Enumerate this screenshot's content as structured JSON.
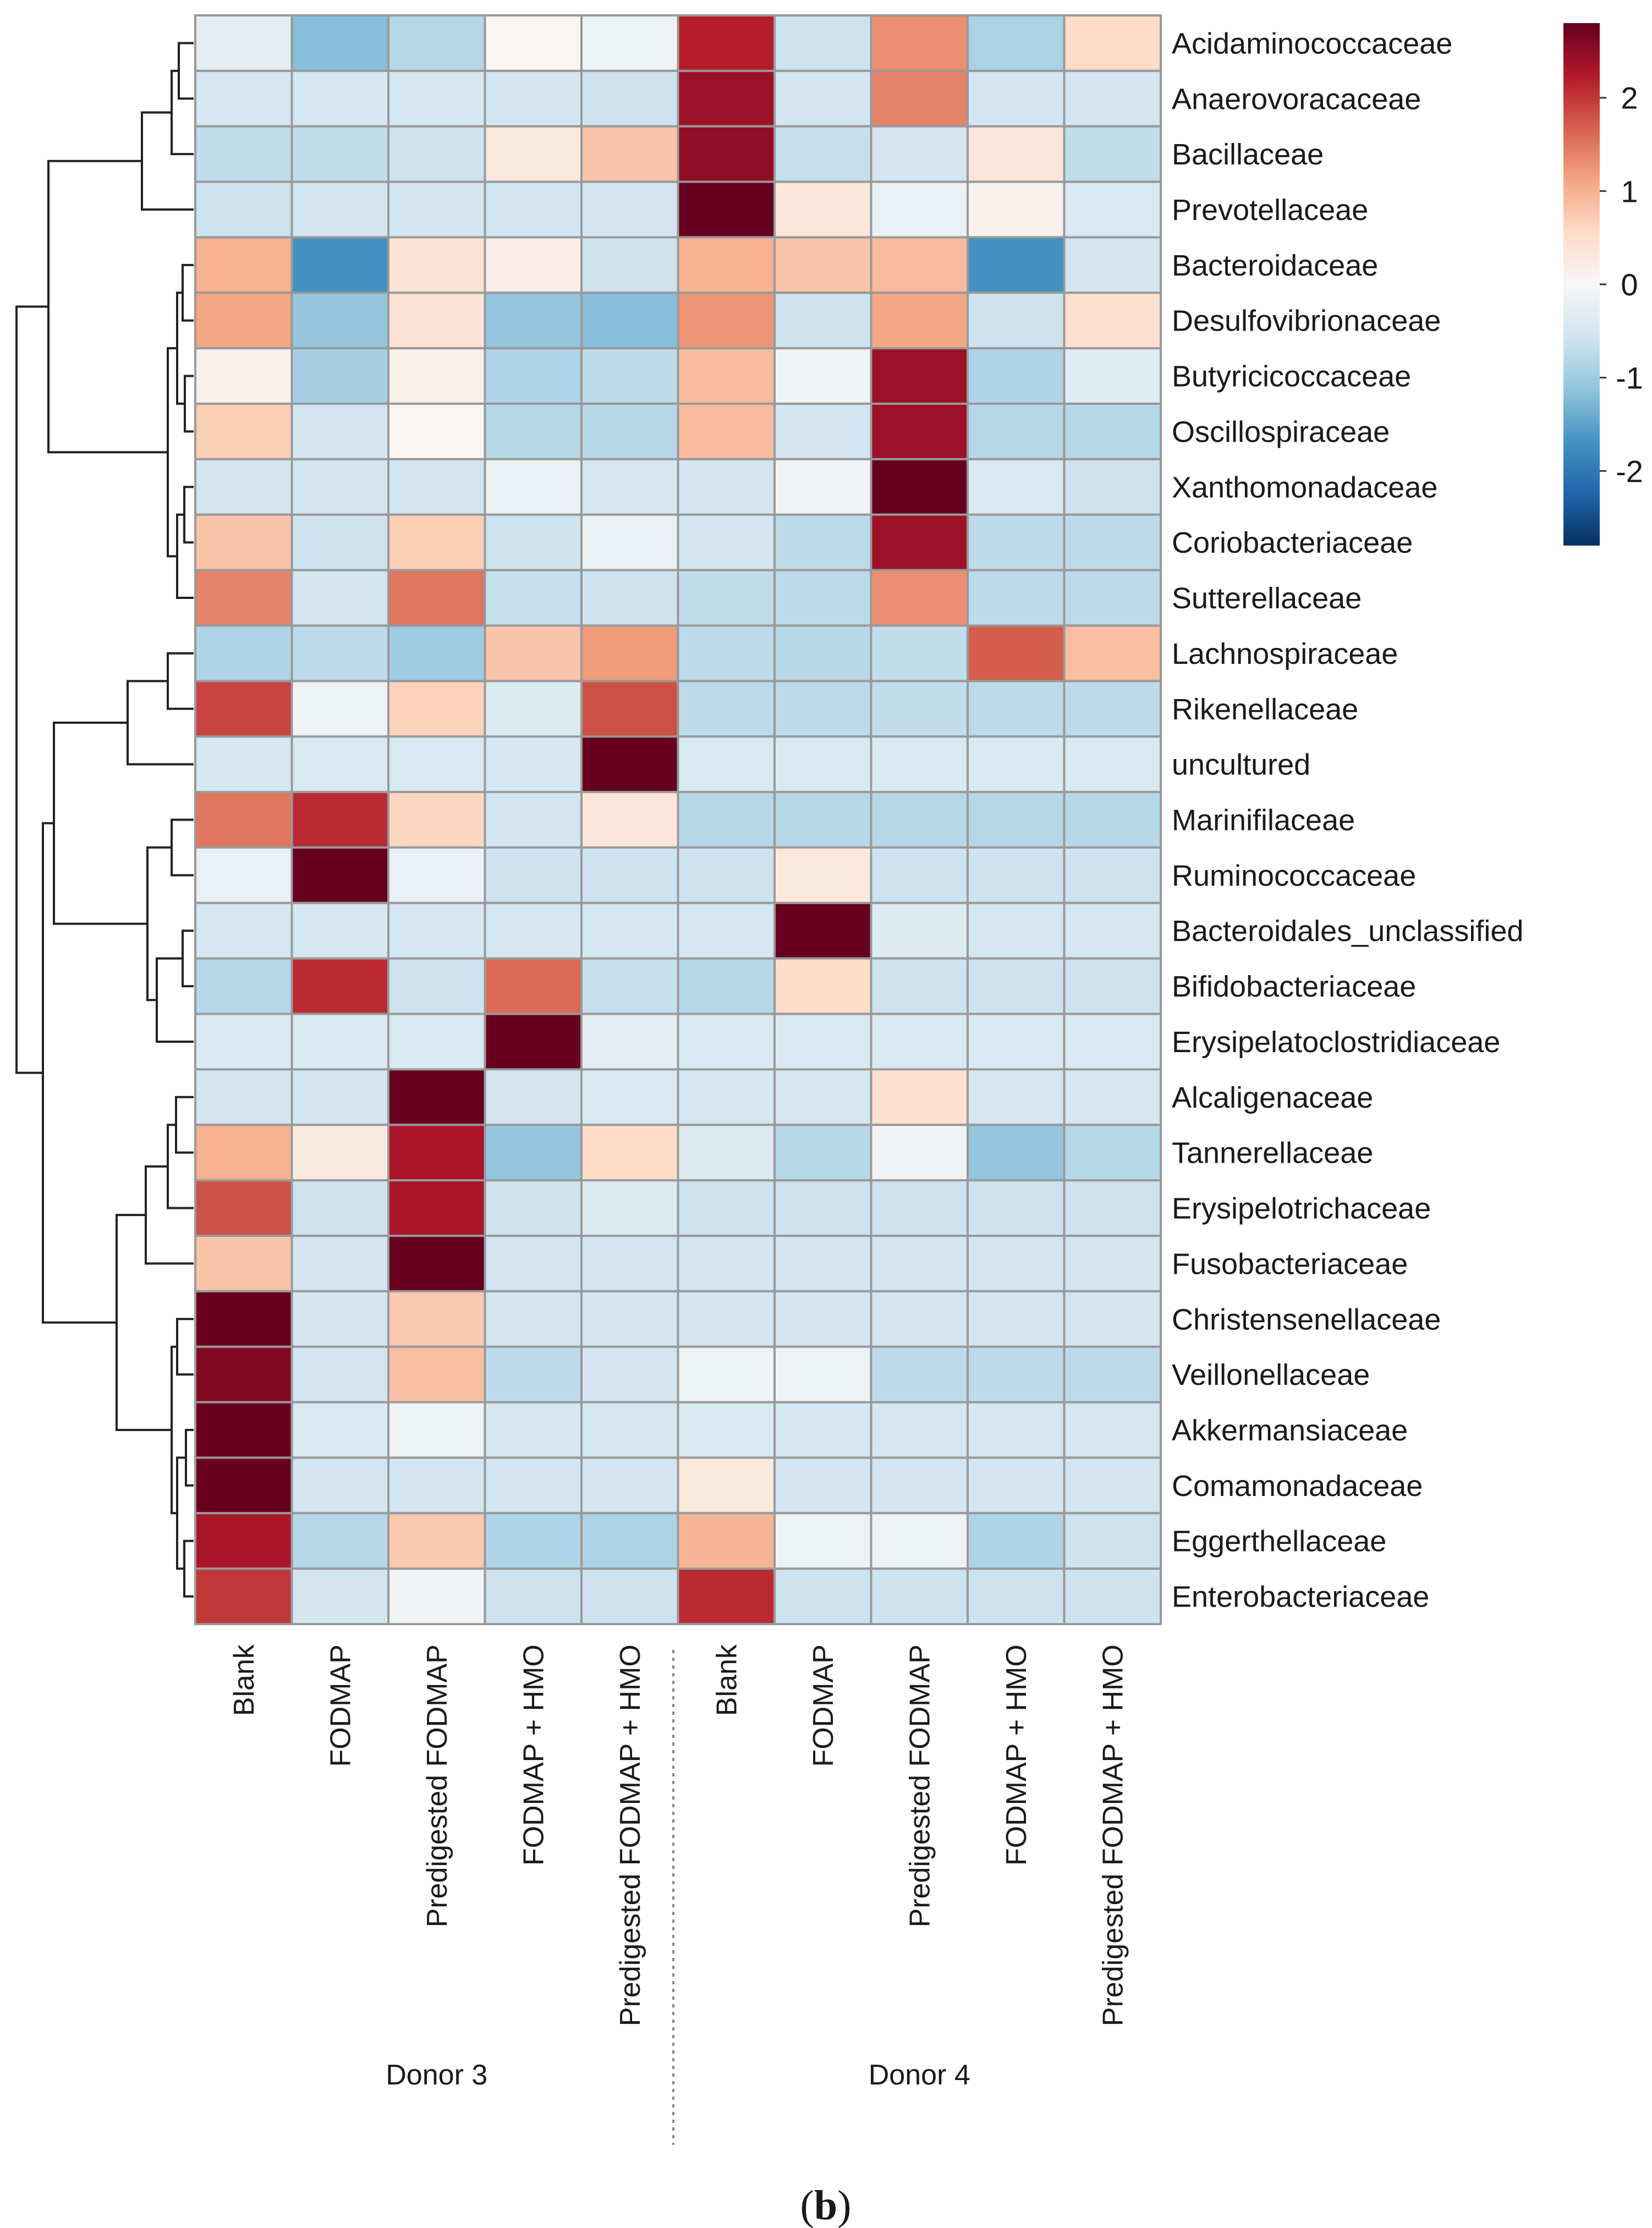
{
  "chart_data": {
    "type": "heatmap",
    "title": "",
    "panel_label_open": "(",
    "panel_label_letter": "b",
    "panel_label_close": ")",
    "groups": [
      {
        "name": "Donor 3",
        "columns": [
          "Blank",
          "FODMAP",
          "Predigested FODMAP",
          "FODMAP + HMO",
          "Predigested FODMAP + HMO"
        ]
      },
      {
        "name": "Donor 4",
        "columns": [
          "Blank",
          "FODMAP",
          "Predigested FODMAP",
          "FODMAP + HMO",
          "Predigested FODMAP + HMO"
        ]
      }
    ],
    "rows": [
      "Acidaminococcaceae",
      "Anaerovoracaceae",
      "Bacillaceae",
      "Prevotellaceae",
      "Bacteroidaceae",
      "Desulfovibrionaceae",
      "Butyricicoccaceae",
      "Oscillospiraceae",
      "Xanthomonadaceae",
      "Coriobacteriaceae",
      "Sutterellaceae",
      "Lachnospiraceae",
      "Rikenellaceae",
      "uncultured",
      "Marinifilaceae",
      "Ruminococcaceae",
      "Bacteroidales_unclassified",
      "Bifidobacteriaceae",
      "Erysipelatoclostridiaceae",
      "Alcaligenaceae",
      "Tannerellaceae",
      "Erysipelotrichaceae",
      "Fusobacteriaceae",
      "Christensenellaceae",
      "Veillonellaceae",
      "Akkermansiaceae",
      "Comamonadaceae",
      "Eggerthellaceae",
      "Enterobacteriaceae"
    ],
    "values": [
      [
        -0.3,
        -1.2,
        -0.8,
        0.05,
        -0.15,
        2.2,
        -0.6,
        1.3,
        -0.9,
        0.55
      ],
      [
        -0.5,
        -0.5,
        -0.5,
        -0.55,
        -0.6,
        2.4,
        -0.55,
        1.4,
        -0.55,
        -0.55
      ],
      [
        -0.7,
        -0.7,
        -0.6,
        0.3,
        0.8,
        2.5,
        -0.65,
        -0.55,
        0.35,
        -0.7
      ],
      [
        -0.6,
        -0.55,
        -0.55,
        -0.55,
        -0.55,
        2.8,
        0.35,
        -0.2,
        0.1,
        -0.45
      ],
      [
        1.0,
        -1.7,
        0.4,
        0.2,
        -0.6,
        1.0,
        0.8,
        0.9,
        -1.7,
        -0.55
      ],
      [
        1.1,
        -1.1,
        0.4,
        -1.1,
        -1.2,
        1.25,
        -0.6,
        1.1,
        -0.6,
        0.45
      ],
      [
        0.1,
        -0.95,
        0.15,
        -0.85,
        -0.75,
        0.9,
        -0.1,
        2.4,
        -0.85,
        -0.35
      ],
      [
        0.7,
        -0.55,
        0.05,
        -0.8,
        -0.8,
        0.9,
        -0.55,
        2.4,
        -0.8,
        -0.8
      ],
      [
        -0.55,
        -0.55,
        -0.55,
        -0.2,
        -0.5,
        -0.55,
        -0.1,
        2.85,
        -0.45,
        -0.6
      ],
      [
        0.8,
        -0.6,
        0.7,
        -0.6,
        -0.2,
        -0.55,
        -0.75,
        2.4,
        -0.75,
        -0.75
      ],
      [
        1.4,
        -0.55,
        1.5,
        -0.65,
        -0.6,
        -0.7,
        -0.75,
        1.3,
        -0.75,
        -0.75
      ],
      [
        -0.85,
        -0.75,
        -1.0,
        0.8,
        1.2,
        -0.75,
        -0.8,
        -0.7,
        1.7,
        0.85
      ],
      [
        1.9,
        -0.15,
        0.65,
        -0.4,
        1.8,
        -0.75,
        -0.75,
        -0.7,
        -0.75,
        -0.75
      ],
      [
        -0.5,
        -0.45,
        -0.45,
        -0.5,
        2.85,
        -0.45,
        -0.45,
        -0.45,
        -0.45,
        -0.45
      ],
      [
        1.5,
        2.1,
        0.6,
        -0.55,
        0.35,
        -0.8,
        -0.8,
        -0.8,
        -0.8,
        -0.8
      ],
      [
        -0.2,
        2.85,
        -0.2,
        -0.6,
        -0.6,
        -0.6,
        0.3,
        -0.6,
        -0.6,
        -0.6
      ],
      [
        -0.5,
        -0.5,
        -0.5,
        -0.5,
        -0.5,
        -0.5,
        2.85,
        -0.4,
        -0.5,
        -0.5
      ],
      [
        -0.8,
        2.1,
        -0.6,
        1.6,
        -0.65,
        -0.8,
        0.55,
        -0.6,
        -0.6,
        -0.6
      ],
      [
        -0.45,
        -0.45,
        -0.45,
        2.85,
        -0.3,
        -0.45,
        -0.45,
        -0.45,
        -0.45,
        -0.45
      ],
      [
        -0.55,
        -0.55,
        2.85,
        -0.55,
        -0.45,
        -0.5,
        -0.5,
        0.45,
        -0.5,
        -0.5
      ],
      [
        1.0,
        0.25,
        2.3,
        -1.1,
        0.55,
        -0.4,
        -0.8,
        -0.1,
        -1.1,
        -0.8
      ],
      [
        1.8,
        -0.6,
        2.3,
        -0.6,
        -0.4,
        -0.6,
        -0.6,
        -0.6,
        -0.6,
        -0.6
      ],
      [
        0.8,
        -0.55,
        2.85,
        -0.55,
        -0.55,
        -0.55,
        -0.55,
        -0.55,
        -0.55,
        -0.55
      ],
      [
        2.8,
        -0.55,
        0.75,
        -0.55,
        -0.55,
        -0.55,
        -0.55,
        -0.55,
        -0.55,
        -0.55
      ],
      [
        2.6,
        -0.55,
        0.85,
        -0.75,
        -0.55,
        -0.15,
        -0.15,
        -0.75,
        -0.75,
        -0.75
      ],
      [
        2.85,
        -0.45,
        -0.15,
        -0.5,
        -0.5,
        -0.45,
        -0.5,
        -0.5,
        -0.5,
        -0.5
      ],
      [
        2.85,
        -0.55,
        -0.55,
        -0.55,
        -0.55,
        0.3,
        -0.55,
        -0.55,
        -0.55,
        -0.55
      ],
      [
        2.3,
        -0.8,
        0.75,
        -0.85,
        -0.9,
        0.95,
        -0.15,
        -0.15,
        -0.85,
        -0.6
      ],
      [
        2.0,
        -0.55,
        -0.1,
        -0.6,
        -0.6,
        2.1,
        -0.6,
        -0.6,
        -0.6,
        -0.6
      ]
    ],
    "colorbar": {
      "ticks": [
        2,
        1,
        0,
        -1,
        -2
      ],
      "range": [
        -2.8,
        2.8
      ],
      "colors": [
        "#053061",
        "#2166ac",
        "#4393c3",
        "#92c5de",
        "#d1e5f0",
        "#f7f7f7",
        "#fddbc7",
        "#f4a582",
        "#d6604d",
        "#b2182b",
        "#67001f"
      ]
    },
    "dendrogram": "hierarchical clustering of rows (left side)"
  }
}
